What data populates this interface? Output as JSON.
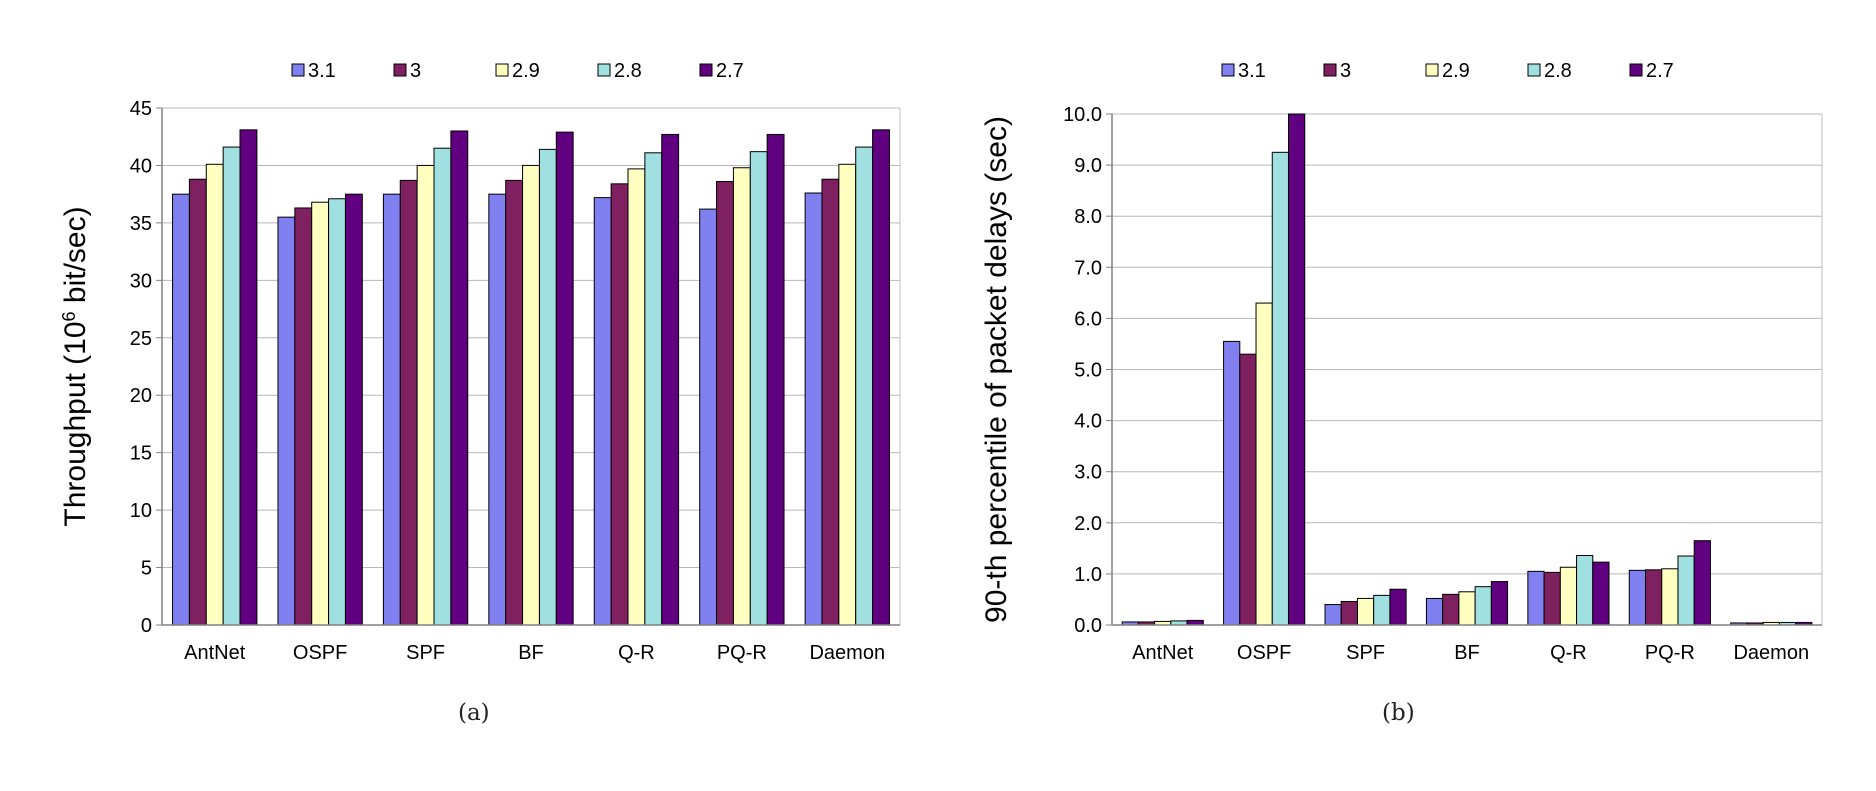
{
  "legend": [
    "3.1",
    "3",
    "2.9",
    "2.8",
    "2.7"
  ],
  "colors": [
    "#8080f0",
    "#7f2060",
    "#ffffc0",
    "#a0e0e0",
    "#600080"
  ],
  "captions": [
    "(a)",
    "(b)"
  ],
  "chart_data": [
    {
      "type": "bar",
      "ylabel": "Throughput (10⁶ bit/sec)",
      "ylim": [
        0,
        45
      ],
      "yticks": [
        "0",
        "5",
        "10",
        "15",
        "20",
        "25",
        "30",
        "35",
        "40",
        "45"
      ],
      "ytick_values": [
        0,
        5,
        10,
        15,
        20,
        25,
        30,
        35,
        40,
        45
      ],
      "grid": true,
      "legend_position": "top",
      "categories": [
        "AntNet",
        "OSPF",
        "SPF",
        "BF",
        "Q-R",
        "PQ-R",
        "Daemon"
      ],
      "series": [
        {
          "name": "3.1",
          "values": [
            37.5,
            35.5,
            37.5,
            37.5,
            37.2,
            36.2,
            37.6
          ]
        },
        {
          "name": "3",
          "values": [
            38.8,
            36.3,
            38.7,
            38.7,
            38.4,
            38.6,
            38.8
          ]
        },
        {
          "name": "2.9",
          "values": [
            40.1,
            36.8,
            40.0,
            40.0,
            39.7,
            39.8,
            40.1
          ]
        },
        {
          "name": "2.8",
          "values": [
            41.6,
            37.1,
            41.5,
            41.4,
            41.1,
            41.2,
            41.6
          ]
        },
        {
          "name": "2.7",
          "values": [
            43.1,
            37.5,
            43.0,
            42.9,
            42.7,
            42.7,
            43.1
          ]
        }
      ]
    },
    {
      "type": "bar",
      "ylabel": "90-th percentile of packet delays (sec)",
      "ylim": [
        0,
        10
      ],
      "yticks": [
        "0.0",
        "1.0",
        "2.0",
        "3.0",
        "4.0",
        "5.0",
        "6.0",
        "7.0",
        "8.0",
        "9.0",
        "10.0"
      ],
      "ytick_values": [
        0,
        1,
        2,
        3,
        4,
        5,
        6,
        7,
        8,
        9,
        10
      ],
      "grid": true,
      "legend_position": "top",
      "categories": [
        "AntNet",
        "OSPF",
        "SPF",
        "BF",
        "Q-R",
        "PQ-R",
        "Daemon"
      ],
      "series": [
        {
          "name": "3.1",
          "values": [
            0.06,
            5.55,
            0.4,
            0.52,
            1.05,
            1.07,
            0.04
          ]
        },
        {
          "name": "3",
          "values": [
            0.06,
            5.3,
            0.46,
            0.6,
            1.03,
            1.08,
            0.04
          ]
        },
        {
          "name": "2.9",
          "values": [
            0.07,
            6.3,
            0.52,
            0.65,
            1.13,
            1.1,
            0.05
          ]
        },
        {
          "name": "2.8",
          "values": [
            0.08,
            9.25,
            0.58,
            0.75,
            1.36,
            1.35,
            0.05
          ]
        },
        {
          "name": "2.7",
          "values": [
            0.09,
            10.0,
            0.7,
            0.85,
            1.23,
            1.65,
            0.05
          ]
        }
      ]
    }
  ]
}
